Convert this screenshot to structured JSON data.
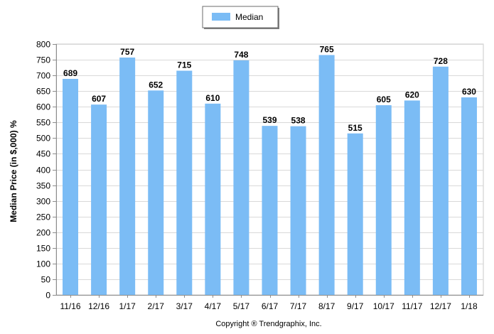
{
  "chart_data": {
    "type": "bar",
    "categories": [
      "11/16",
      "12/16",
      "1/17",
      "2/17",
      "3/17",
      "4/17",
      "5/17",
      "6/17",
      "7/17",
      "8/17",
      "9/17",
      "10/17",
      "11/17",
      "12/17",
      "1/18"
    ],
    "series": [
      {
        "name": "Median",
        "values": [
          689,
          607,
          757,
          652,
          715,
          610,
          748,
          539,
          538,
          765,
          515,
          605,
          620,
          728,
          630
        ],
        "color": "#7bbcf5"
      }
    ],
    "data_labels": [
      "689",
      "607",
      "757",
      "652",
      "715",
      "610",
      "748",
      "539",
      "538",
      "765",
      "515",
      "605",
      "620",
      "728",
      "630"
    ],
    "ylabel": "Median Price (in $,000) %",
    "ylim": [
      0,
      800
    ],
    "yticks": [
      0,
      50,
      100,
      150,
      200,
      250,
      300,
      350,
      400,
      450,
      500,
      550,
      600,
      650,
      700,
      750,
      800
    ],
    "grid": true,
    "legend": {
      "placement": "top-center",
      "entries": [
        "Median"
      ]
    }
  },
  "footer": {
    "copyright": "Copyright ® Trendgraphix, Inc."
  }
}
